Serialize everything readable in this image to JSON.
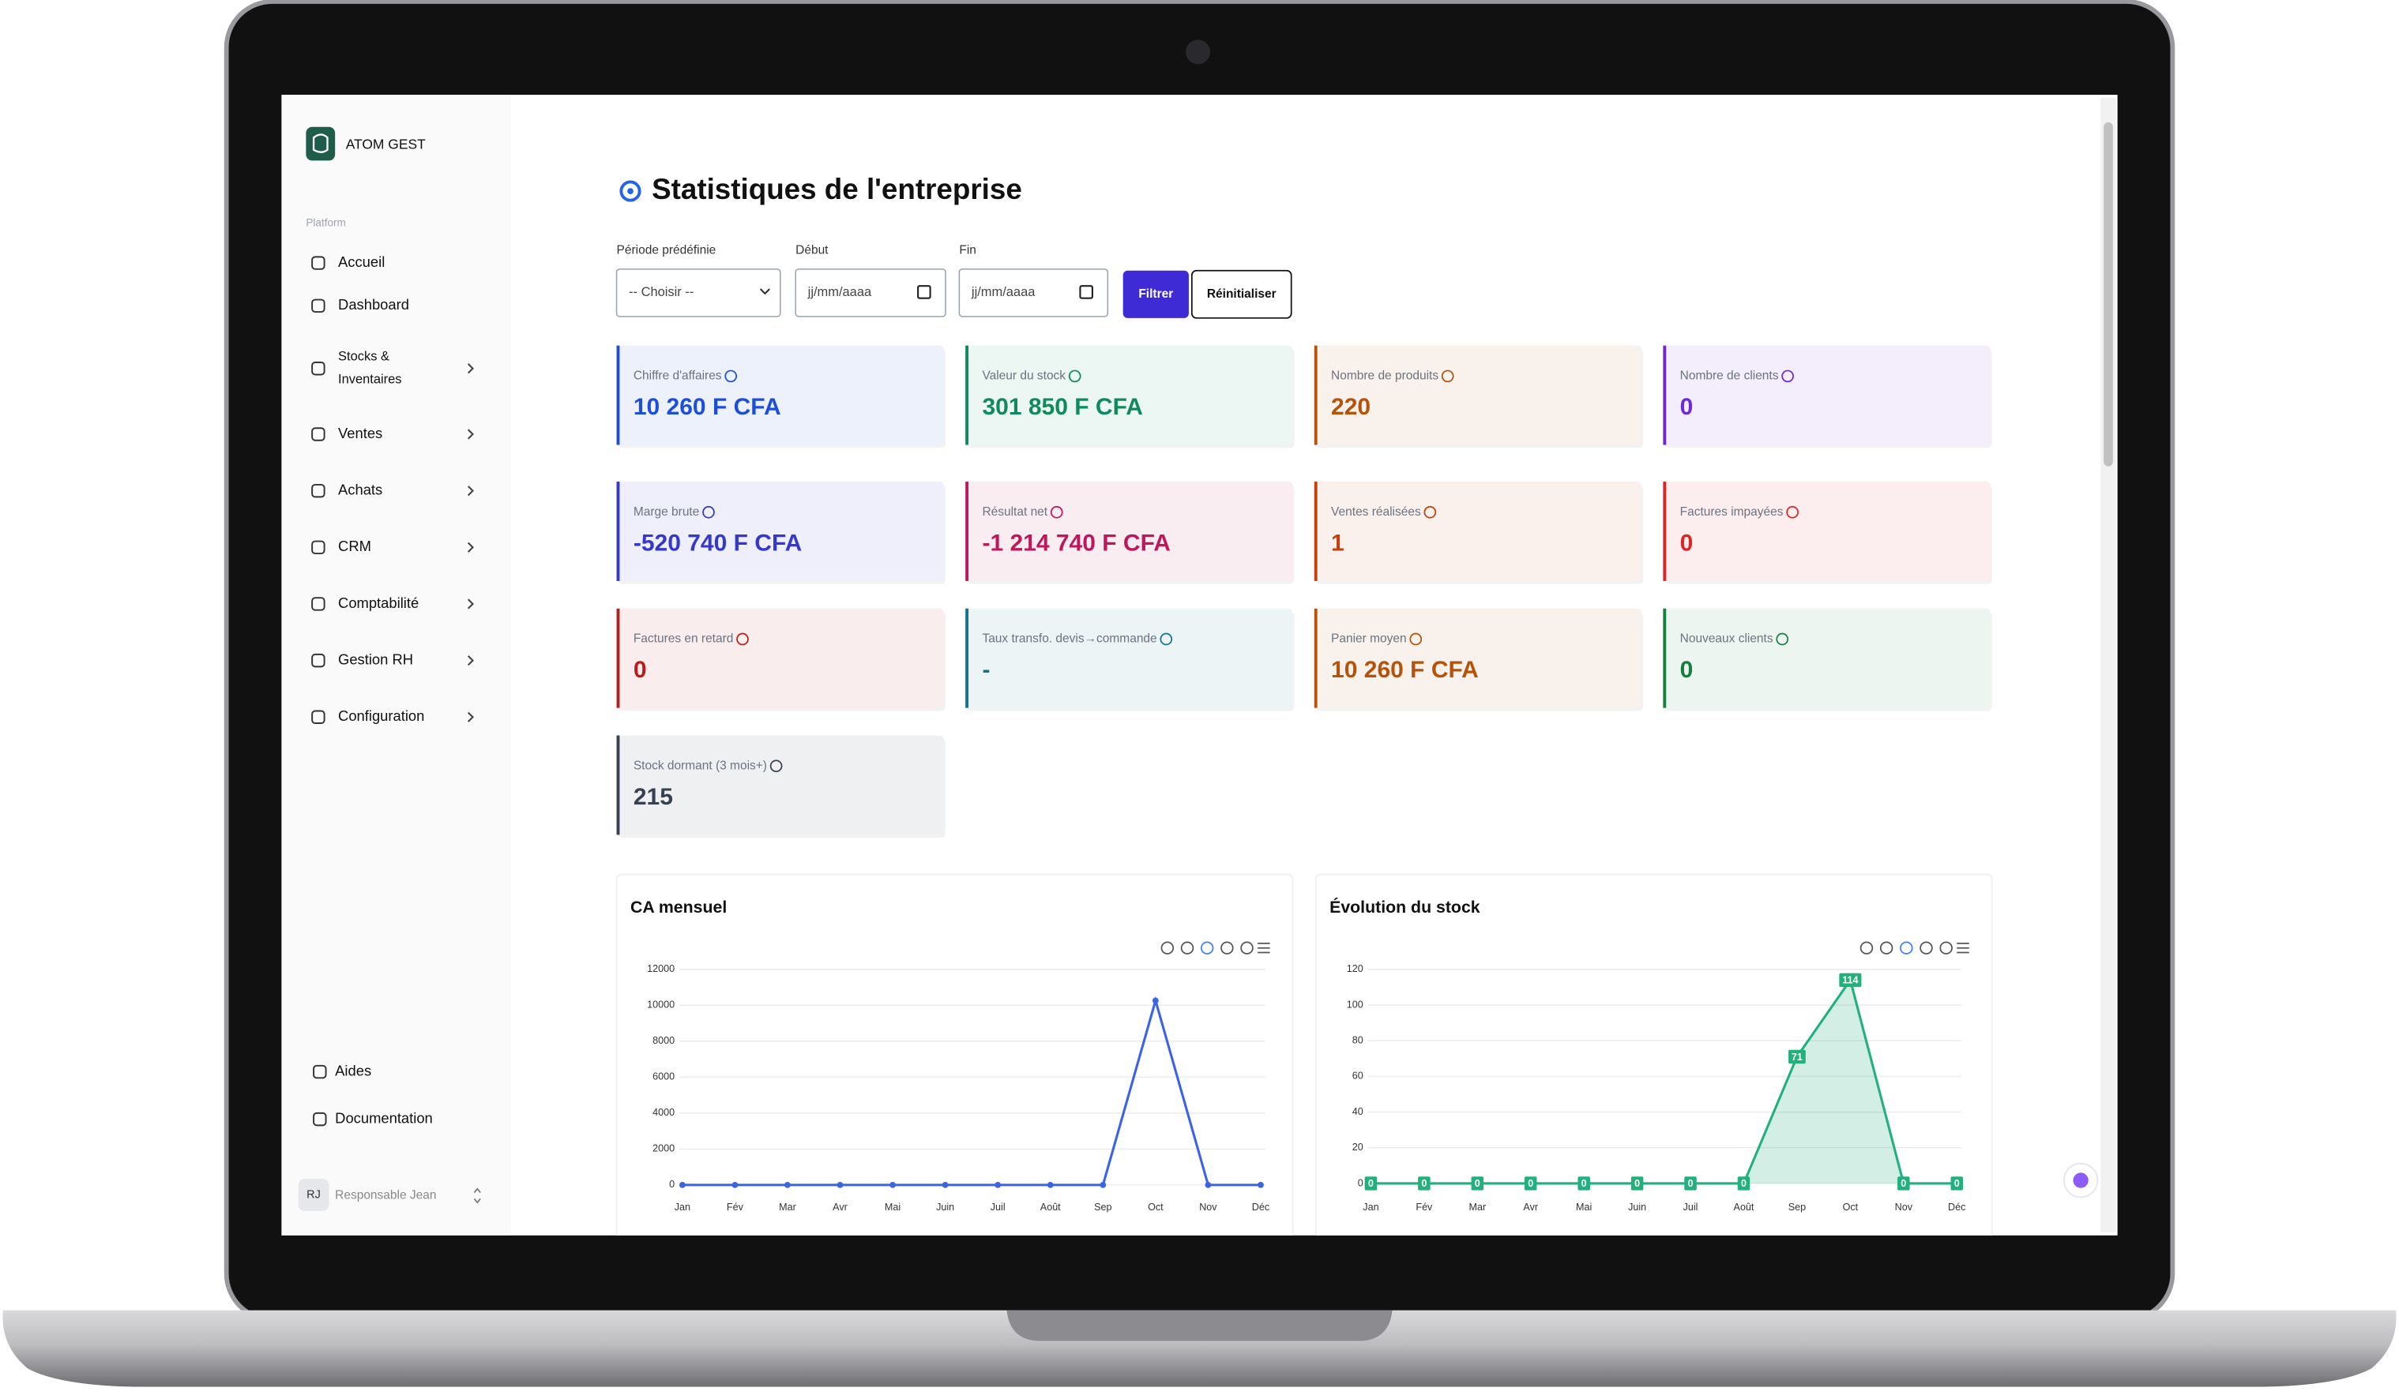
{
  "app": {
    "name": "ATOM GEST"
  },
  "sidebar": {
    "section": "Platform",
    "items": [
      {
        "lines": [
          "Accueil"
        ]
      },
      {
        "lines": [
          "Dashboard"
        ]
      },
      {
        "lines": [
          "Stocks &",
          "Inventaires"
        ]
      },
      {
        "lines": [
          "Ventes"
        ]
      },
      {
        "lines": [
          "Achats"
        ]
      },
      {
        "lines": [
          "CRM"
        ]
      },
      {
        "lines": [
          "Comptabilité"
        ]
      },
      {
        "lines": [
          "Gestion RH"
        ]
      },
      {
        "lines": [
          "Configuration"
        ]
      }
    ],
    "footer_items": [
      "Aides",
      "Documentation"
    ],
    "user": {
      "initials": "RJ",
      "name": "Responsable Jean"
    }
  },
  "header": {
    "title": "Statistiques de l'entreprise"
  },
  "filters": {
    "fields": [
      {
        "label": "Période prédéfinie",
        "placeholder": "-- Choisir --"
      },
      {
        "label": "Début",
        "placeholder": "jj/mm/aaaa"
      },
      {
        "label": "Fin",
        "placeholder": "jj/mm/aaaa"
      }
    ],
    "buttons": [
      "Filtrer",
      "Réinitialiser"
    ]
  },
  "cards": [
    {
      "label": "Chiffre d'affaires",
      "value": "10 260 F CFA",
      "color": "#1d4ed8"
    },
    {
      "label": "Valeur du stock",
      "value": "301 850 F CFA",
      "color": "#0f8a5f"
    },
    {
      "label": "Nombre de produits",
      "value": "220",
      "color": "#b45309"
    },
    {
      "label": "Nombre de clients",
      "value": "0",
      "color": "#6d28d9"
    },
    {
      "label": "Marge brute",
      "value": "-520 740 F CFA",
      "color": "#3538cd"
    },
    {
      "label": "Résultat net",
      "value": "-1 214 740 F CFA",
      "color": "#be185d"
    },
    {
      "label": "Ventes réalisées",
      "value": "1",
      "color": "#c2410c"
    },
    {
      "label": "Factures impayées",
      "value": "0",
      "color": "#dc2626"
    },
    {
      "label": "Factures en retard",
      "value": "0",
      "color": "#b91c1c"
    },
    {
      "label": "Taux transfo. devis→commande",
      "value": "-",
      "color": "#0e7490"
    },
    {
      "label": "Panier moyen",
      "value": "10 260 F CFA",
      "color": "#b45309"
    },
    {
      "label": "Nouveaux clients",
      "value": "0",
      "color": "#15803d"
    },
    {
      "label": "Stock dormant (3 mois+)",
      "value": "215",
      "color": "#374151"
    }
  ],
  "chart_data": [
    {
      "type": "line",
      "title": "CA mensuel",
      "categories": [
        "Jan",
        "Fév",
        "Mar",
        "Avr",
        "Mai",
        "Juin",
        "Juil",
        "Août",
        "Sep",
        "Oct",
        "Nov",
        "Déc"
      ],
      "values": [
        0,
        0,
        0,
        0,
        0,
        0,
        0,
        0,
        0,
        10260,
        0,
        0
      ],
      "color": "#3b63e6",
      "ylim": [
        0,
        12000
      ],
      "yticks": [
        0,
        2000,
        4000,
        6000,
        8000,
        10000,
        12000
      ],
      "grid": true
    },
    {
      "type": "area",
      "title": "Évolution du stock",
      "categories": [
        "Jan",
        "Fév",
        "Mar",
        "Avr",
        "Mai",
        "Juin",
        "Juil",
        "Août",
        "Sep",
        "Oct",
        "Nov",
        "Déc"
      ],
      "values": [
        0,
        0,
        0,
        0,
        0,
        0,
        0,
        0,
        71,
        114,
        0,
        0
      ],
      "color": "#22b07d",
      "ylim": [
        0,
        120
      ],
      "yticks": [
        0,
        20,
        40,
        60,
        80,
        100,
        120
      ],
      "grid": true,
      "data_labels": true
    }
  ]
}
